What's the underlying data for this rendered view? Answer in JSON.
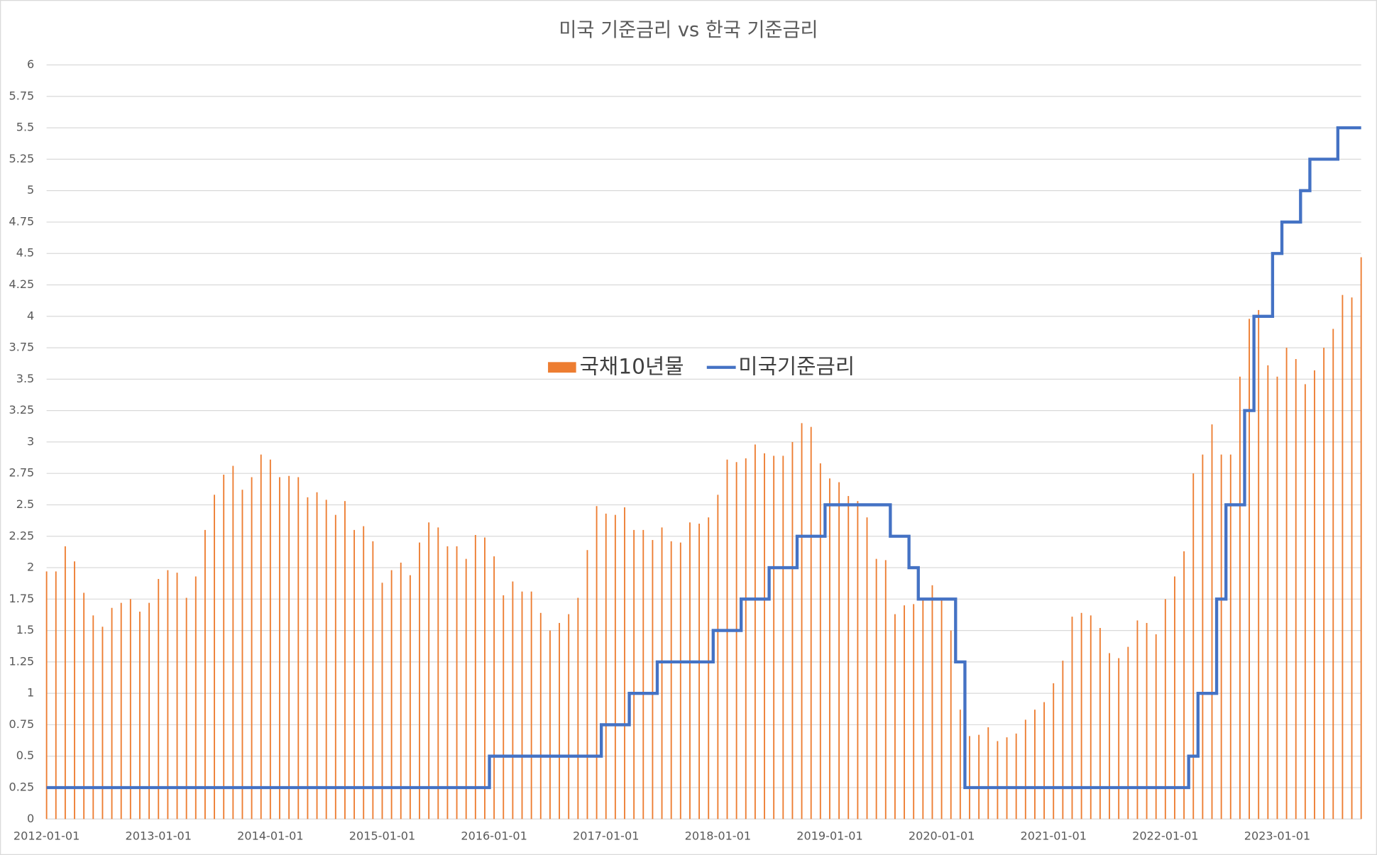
{
  "chart_data": {
    "type": "bar",
    "title": "미국 기준금리 vs 한국 기준금리",
    "categories": [
      "2012-01-01",
      null,
      null,
      null,
      null,
      null,
      null,
      null,
      null,
      null,
      null,
      null,
      "2013-01-01",
      null,
      null,
      null,
      null,
      null,
      null,
      null,
      null,
      null,
      null,
      null,
      "2014-01-01",
      null,
      null,
      null,
      null,
      null,
      null,
      null,
      null,
      null,
      null,
      null,
      "2015-01-01",
      null,
      null,
      null,
      null,
      null,
      null,
      null,
      null,
      null,
      null,
      null,
      "2016-01-01",
      null,
      null,
      null,
      null,
      null,
      null,
      null,
      null,
      null,
      null,
      null,
      "2017-01-01",
      null,
      null,
      null,
      null,
      null,
      null,
      null,
      null,
      null,
      null,
      null,
      "2018-01-01",
      null,
      null,
      null,
      null,
      null,
      null,
      null,
      null,
      null,
      null,
      null,
      "2019-01-01",
      null,
      null,
      null,
      null,
      null,
      null,
      null,
      null,
      null,
      null,
      null,
      "2020-01-01",
      null,
      null,
      null,
      null,
      null,
      null,
      null,
      null,
      null,
      null,
      null,
      "2021-01-01",
      null,
      null,
      null,
      null,
      null,
      null,
      null,
      null,
      null,
      null,
      null,
      "2022-01-01",
      null,
      null,
      null,
      null,
      null,
      null,
      null,
      null,
      null,
      null,
      null,
      "2023-01-01",
      null,
      null,
      null,
      null,
      null,
      null,
      null,
      null,
      null
    ],
    "series": [
      {
        "name": "국채10년물",
        "type": "bar",
        "color": "#ed7d31",
        "values": [
          1.97,
          1.97,
          2.17,
          2.05,
          1.8,
          1.62,
          1.53,
          1.68,
          1.72,
          1.75,
          1.65,
          1.72,
          1.91,
          1.98,
          1.96,
          1.76,
          1.93,
          2.3,
          2.58,
          2.74,
          2.81,
          2.62,
          2.72,
          2.9,
          2.86,
          2.72,
          2.73,
          2.72,
          2.56,
          2.6,
          2.54,
          2.42,
          2.53,
          2.3,
          2.33,
          2.21,
          1.88,
          1.98,
          2.04,
          1.94,
          2.2,
          2.36,
          2.32,
          2.17,
          2.17,
          2.07,
          2.26,
          2.24,
          2.09,
          1.78,
          1.89,
          1.81,
          1.81,
          1.64,
          1.5,
          1.56,
          1.63,
          1.76,
          2.14,
          2.49,
          2.43,
          2.42,
          2.48,
          2.3,
          2.3,
          2.22,
          2.32,
          2.21,
          2.2,
          2.36,
          2.35,
          2.4,
          2.58,
          2.86,
          2.84,
          2.87,
          2.98,
          2.91,
          2.89,
          2.89,
          3.0,
          3.15,
          3.12,
          2.83,
          2.71,
          2.68,
          2.57,
          2.53,
          2.4,
          2.07,
          2.06,
          1.63,
          1.7,
          1.71,
          1.75,
          1.86,
          1.76,
          1.5,
          0.87,
          0.66,
          0.67,
          0.73,
          0.62,
          0.65,
          0.68,
          0.79,
          0.87,
          0.93,
          1.08,
          1.26,
          1.61,
          1.64,
          1.62,
          1.52,
          1.32,
          1.28,
          1.37,
          1.58,
          1.56,
          1.47,
          1.75,
          1.93,
          2.13,
          2.75,
          2.9,
          3.14,
          2.9,
          2.9,
          3.52,
          3.98,
          4.05,
          3.61,
          3.52,
          3.75,
          3.66,
          3.46,
          3.57,
          3.75,
          3.9,
          4.17,
          4.15,
          4.47
        ]
      },
      {
        "name": "미국기준금리",
        "type": "step",
        "color": "#4472c4",
        "values": [
          0.25,
          0.25,
          0.25,
          0.25,
          0.25,
          0.25,
          0.25,
          0.25,
          0.25,
          0.25,
          0.25,
          0.25,
          0.25,
          0.25,
          0.25,
          0.25,
          0.25,
          0.25,
          0.25,
          0.25,
          0.25,
          0.25,
          0.25,
          0.25,
          0.25,
          0.25,
          0.25,
          0.25,
          0.25,
          0.25,
          0.25,
          0.25,
          0.25,
          0.25,
          0.25,
          0.25,
          0.25,
          0.25,
          0.25,
          0.25,
          0.25,
          0.25,
          0.25,
          0.25,
          0.25,
          0.25,
          0.25,
          0.25,
          0.5,
          0.5,
          0.5,
          0.5,
          0.5,
          0.5,
          0.5,
          0.5,
          0.5,
          0.5,
          0.5,
          0.5,
          0.75,
          0.75,
          0.75,
          1,
          1,
          1,
          1.25,
          1.25,
          1.25,
          1.25,
          1.25,
          1.25,
          1.5,
          1.5,
          1.5,
          1.75,
          1.75,
          1.75,
          2,
          2,
          2,
          2.25,
          2.25,
          2.25,
          2.5,
          2.5,
          2.5,
          2.5,
          2.5,
          2.5,
          2.5,
          2.25,
          2.25,
          2,
          1.75,
          1.75,
          1.75,
          1.75,
          1.25,
          0.25,
          0.25,
          0.25,
          0.25,
          0.25,
          0.25,
          0.25,
          0.25,
          0.25,
          0.25,
          0.25,
          0.25,
          0.25,
          0.25,
          0.25,
          0.25,
          0.25,
          0.25,
          0.25,
          0.25,
          0.25,
          0.25,
          0.25,
          0.25,
          0.5,
          1,
          1,
          1.75,
          2.5,
          2.5,
          3.25,
          4,
          4,
          4.5,
          4.75,
          4.75,
          5,
          5.25,
          5.25,
          5.25,
          5.5,
          5.5,
          5.5
        ]
      }
    ],
    "ylim": [
      0,
      6
    ],
    "yticks": [
      0,
      0.25,
      0.5,
      0.75,
      1,
      1.25,
      1.5,
      1.75,
      2,
      2.25,
      2.5,
      2.75,
      3,
      3.25,
      3.5,
      3.75,
      4,
      4.25,
      4.5,
      4.75,
      5,
      5.25,
      5.5,
      5.75,
      6
    ],
    "grid": true,
    "legend": "center"
  }
}
